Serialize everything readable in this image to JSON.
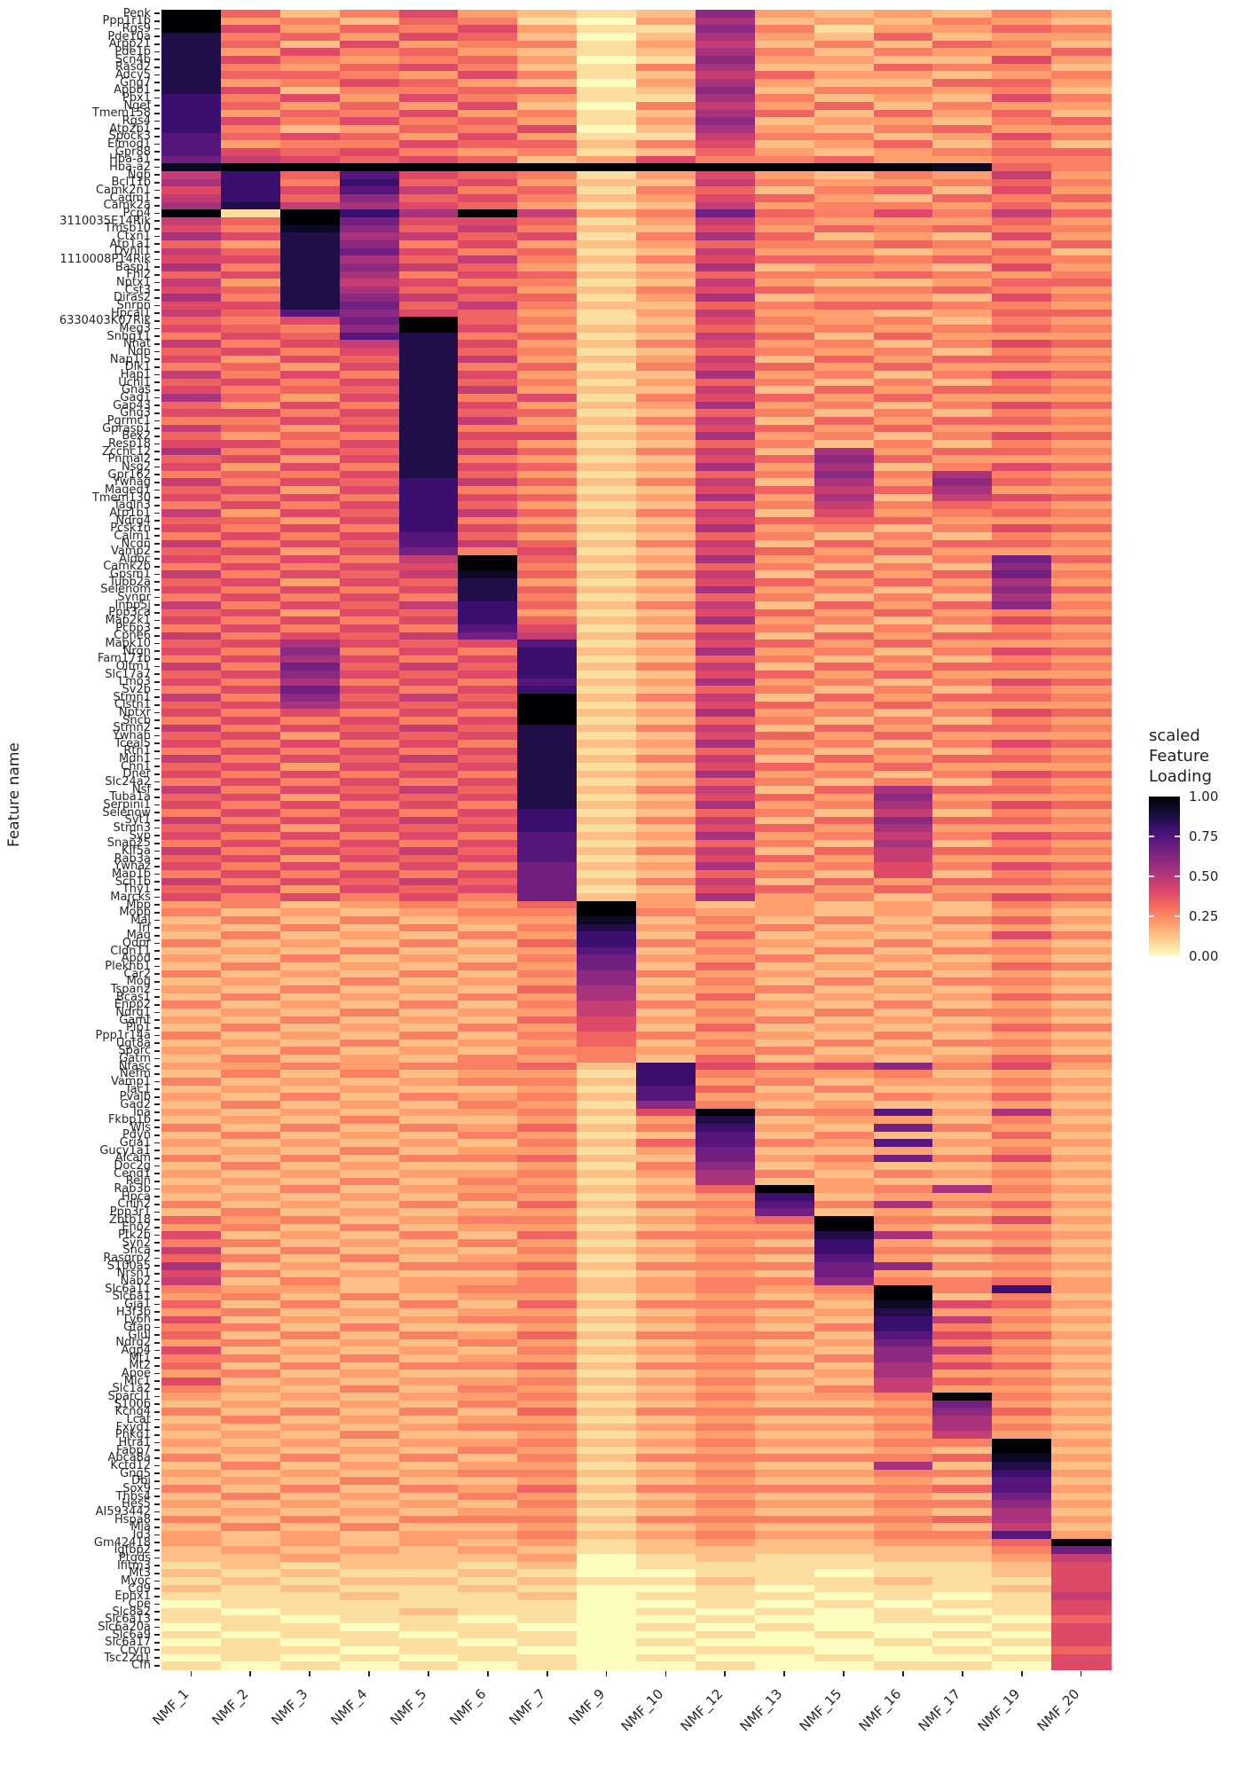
{
  "chart_data": {
    "type": "heatmap",
    "title": "",
    "xlabel": "",
    "ylabel": "Feature name",
    "legend_title": "scaled\nFeature\nLoading",
    "legend_ticks": [
      "1.00",
      "0.75",
      "0.50",
      "0.25",
      "0.00"
    ],
    "legend_position": "right",
    "grid": false,
    "background": "#FFFFFF",
    "value_name": "scaled Feature Loading",
    "value_range": [
      0,
      1
    ],
    "x": [
      "NMF_1",
      "NMF_2",
      "NMF_3",
      "NMF_4",
      "NMF_5",
      "NMF_6",
      "NMF_7",
      "NMF_9",
      "NMF_10",
      "NMF_12",
      "NMF_13",
      "NMF_15",
      "NMF_16",
      "NMF_17",
      "NMF_19",
      "NMF_20"
    ],
    "y": [
      "Penk",
      "Ppp1r1b",
      "Rgs9",
      "Pde10a",
      "Arpp21",
      "Pde1b",
      "Scn4b",
      "Rasd2",
      "Adcy5",
      "Gng7",
      "Apbb1",
      "Pbx1",
      "Ngef",
      "Tmem158",
      "Rgs4",
      "Atp2b1",
      "Spock3",
      "Elmod1",
      "Gpr88",
      "Hba-a1",
      "Hba-a2",
      "Ngb",
      "Bcl11b",
      "Camk2n1",
      "Cadm1",
      "Camk2a",
      "Pcp4",
      "3110035E14Rik",
      "Tmsb10",
      "Ctxn1",
      "Atp1a1",
      "Dynll1",
      "1110008P14Rik",
      "Basp1",
      "Fhl2",
      "Nptx1",
      "Cst3",
      "Diras2",
      "Snrpn",
      "Hpcal1",
      "6330403K07Rik",
      "Meg3",
      "Snhg11",
      "Nnat",
      "Ndn",
      "Nap1l5",
      "Dlk1",
      "Hap1",
      "Uchl1",
      "Gnas",
      "Gad1",
      "Gap43",
      "Gng3",
      "Pgrmc1",
      "Gprasp1",
      "Bex2",
      "Resp18",
      "Zcchc12",
      "Pnmal2",
      "Nsg2",
      "Gpr162",
      "Ywhag",
      "Maged1",
      "Tmem130",
      "Tagln3",
      "Atp1b1",
      "Ndrg4",
      "Pcsk1n",
      "Calm1",
      "Ncdn",
      "Vamp2",
      "Aldoc",
      "Camk2b",
      "Gpsm1",
      "Tubb2a",
      "Selenom",
      "Synpr",
      "Inpp5j",
      "Ppp3ca",
      "Map2k1",
      "Pcbp3",
      "Cpne6",
      "Mapk10",
      "Nrgn",
      "Fam171b",
      "Olfm1",
      "Slc17a7",
      "Lmo3",
      "Sv2b",
      "Stmn1",
      "Clstn1",
      "Nptxr",
      "Sncb",
      "Stmn2",
      "Ywhah",
      "Tceal5",
      "Rtn1",
      "Mdh1",
      "Chn1",
      "Dner",
      "Slc24a2",
      "Nsf",
      "Tuba1a",
      "Serpini1",
      "Selenow",
      "Syt1",
      "Stmn3",
      "Syp",
      "Snap25",
      "Kif5a",
      "Rab3a",
      "Ywhaz",
      "Map1b",
      "Scn1b",
      "Thy1",
      "Marcks",
      "Mbp",
      "Mobp",
      "Mal",
      "Trf",
      "Mag",
      "Qdpr",
      "Cldn11",
      "Apod",
      "Plekhb1",
      "Car2",
      "Mog",
      "Tspan2",
      "Bcas1",
      "Enpp2",
      "Ndrg1",
      "Gamt",
      "Plp1",
      "Ppp1r14a",
      "Ugt8a",
      "Sparc",
      "Gatm",
      "Nfasc",
      "Nefm",
      "Vamp1",
      "Tac1",
      "Pvalb",
      "Gad2",
      "Ina",
      "Fkbp1b",
      "Wls",
      "Pdyn",
      "Gria1",
      "Gucy1a1",
      "Alcam",
      "Doc2g",
      "Cend1",
      "Reln",
      "Rab3b",
      "Hpca",
      "Cnih2",
      "Ppp3r1",
      "Zbtb18",
      "Eno2",
      "Ptk2b",
      "Syn2",
      "Snca",
      "Rasgrp2",
      "S100a5",
      "Nrsn1",
      "Nab2",
      "Slc6a11",
      "Slc6a1",
      "Gja1",
      "H3f3b",
      "Ly6h",
      "Gfap",
      "Glul",
      "Ndrg2",
      "Aqp4",
      "Mt1",
      "Mt2",
      "Apoe",
      "Mlc1",
      "Slc1a2",
      "Sparcl1",
      "S100b",
      "Kcng4",
      "Lcat",
      "Fxyd1",
      "Phkg1",
      "Htra1",
      "Fabp7",
      "Abca8a",
      "Kctd12",
      "Gng5",
      "Dbi",
      "Sox9",
      "Thbs4",
      "Hes5",
      "AI593442",
      "Hspa8",
      "Mia",
      "Id3",
      "Gm42418",
      "Igfbp2",
      "Ptgds",
      "Ifitm3",
      "Mt3",
      "Myoc",
      "Cd9",
      "Ephx1",
      "Cpe",
      "Slc8a2",
      "Slc6a13",
      "Slc6a20a",
      "Slc6a9",
      "Slc6a17",
      "Crym",
      "Tsc22d1",
      "Cfh"
    ],
    "values_encoding": "one hex char per cell (columns in x order), cell value = hexdigit/15 of scaled feature loading",
    "values": [
      "f524632129323243",
      "f342541038232432",
      "f635463119413354",
      "d453652028325233",
      "d526344137242542",
      "d364532128424335",
      "d643453019332263",
      "d435642148225442",
      "d554364127533234",
      "d346532038322553",
      "d624455129244342",
      "c463643118423264",
      "c535362047352433",
      "c354634128525352",
      "c646453139233245",
      "c423546028324533",
      "b565363117442364",
      "b344655246235242",
      "b656434125323455",
      "a765652364453344",
      "effffffffffffe54",
      "7c5b654136324373",
      "8c4c563227433454",
      "6c6b745145245263",
      "7c59564236532545",
      "8d78653127344353",
      "f1fc8f734a546475",
      "75fa665137433353",
      "64e9574226354544",
      "86d8756148523263",
      "53d9463235445435",
      "75da645127332352",
      "66d8574246554544",
      "84d9753128233263",
      "56d8465235445434",
      "73d7644127322355",
      "65d8563246544543",
      "84d9755138233264",
      "66da574225455443",
      "75b9653137332355",
      "546af54126434243",
      "6549f63235343454",
      "465bd45127525333",
      "7467d63246342465",
      "5646d54125434243",
      "6365d73237253554",
      "4536d45146535333",
      "7464d63228342465",
      "5646d54135424243",
      "6455d73227253554",
      "8536d46146535333",
      "5364d63238342465",
      "6646d55125424243",
      "4465d73247253554",
      "7536d44126535333",
      "5354d66238342465",
      "6646d53125424243",
      "8465d75247283554",
      "5636d43126595333",
      "6364d65238382465",
      "4546d53125494843",
      "7465c75247283954",
      "5636c43126575833",
      "6464c65238382765",
      "4646c53125474543",
      "7365c75247263454",
      "5536c43126555333",
      "6464c65238342465",
      "4646b53125424243",
      "7465b75247253554",
      "5636a46126535333",
      "64647f52383424a5",
      "46466f4125424293",
      "74657e52472535a4",
      "56365d3126535383",
      "64646d5238342495",
      "46464d4125424283",
      "74657c5247253594",
      "56365c3126535343",
      "64646c5238342465",
      "46464b6125424243",
      "74657a7247253554",
      "568656b126535333",
      "649464c238342465",
      "468646c125424243",
      "74a575c247253554",
      "569656c126535333",
      "648464b238342465",
      "46a646c125424243",
      "749575f247253554",
      "568656f126535333",
      "646464f238342465",
      "464646f125424243",
      "746575d247253554",
      "563656d126535333",
      "646464d238342465",
      "464646d125424243",
      "746575d247253554",
      "563656d126535333",
      "646464d238342465",
      "464646d125424243",
      "746575d247258554",
      "563656d126539333",
      "646464d238348465",
      "464646c125427243",
      "746575c247259554",
      "563656c126538333",
      "646464b238347465",
      "464646b125428243",
      "746575b247257554",
      "563656b126537333",
      "646464a238346465",
      "464646a125426243",
      "746575a247253554",
      "563656a126535333",
      "646464a238342465",
      "3423435f32323243",
      "4232344f43323232",
      "2424233e24242453",
      "3242424d33423232",
      "2423243c25232364",
      "4232425c43324232",
      "2324233b24242443",
      "3242324a33423232",
      "2423243a25232354",
      "4232424943324232",
      "2324233924242443",
      "3242325833423232",
      "2423243825232354",
      "4232424743324232",
      "2324233724242443",
      "3242325633423232",
      "2423243625232354",
      "4232424543324232",
      "2324233524242443",
      "3242324433423232",
      "2423243425232354",
      "33434452c6569463",
      "24242331c4334232",
      "42323442c3423343",
      "23232231b5242232",
      "32424342b3324353",
      "2423243194232232",
      "323233426f44b383",
      "232422313d233242",
      "424243524c32a433",
      "242324312b242252",
      "323232425b43b333",
      "232423313a223242",
      "424244522a34a463",
      "2423223149232232",
      "3232334238424343",
      "2324243128232232",
      "3242334235f34843",
      "2323243123c23332",
      "4232425244b48453",
      "2423233123a23232",
      "53423442345f4463",
      "34242331233f3232",
      "62324252444d8443",
      "44232431232c3232",
      "72423242344c4453",
      "54242331232b3232",
      "82324452444a9443",
      "64232231232a3232",
      "7242334234494453",
      "433234423434f4c3",
      "342423312323f242",
      "524242524442e653",
      "342323312323d332",
      "623234423432c743",
      "442422312324c432",
      "524243524442b653",
      "342324312323a432",
      "6232324234329743",
      "4424233123249432",
      "5242445244428653",
      "3423223123238332",
      "6232334234327543",
      "4324243123247332",
      "3232334234334f43",
      "2323243123223a32",
      "4242425244444953",
      "2423233123223832",
      "3232344234334843",
      "2324223123223732",
      "32323342343344f3",
      "23232431232232f2",
      "42424242444445e3",
      "24232331232282d2",
      "32323442343344c3",
      "23242231232232b2",
      "42424352444445b3",
      "24232431232232a2",
      "3232324234334493",
      "2323233123223282",
      "4242444244444583",
      "2424223123223272",
      "32323342343344b3",
      "323232312322335f",
      "232323212222224a",
      "2232223012112237",
      "1212212011111126",
      "2121121001101126",
      "1212212112112116",
      "2121121001011126",
      "1112112011101017",
      "0111111001010116",
      "1011211010101016",
      "1101101001001105",
      "0110110010100016",
      "1011011001010106",
      "0101101010001016",
      "1110110001100105",
      "0101011010010016",
      "1010101001001106"
    ],
    "colormap": {
      "name": "magma_reversed",
      "stops_low_to_high": [
        "#FCFDBF",
        "#FECF92",
        "#FE9F6D",
        "#F7705C",
        "#DE4968",
        "#B73779",
        "#8C2981",
        "#641A80",
        "#3B0F70",
        "#140E36",
        "#000004"
      ]
    }
  }
}
